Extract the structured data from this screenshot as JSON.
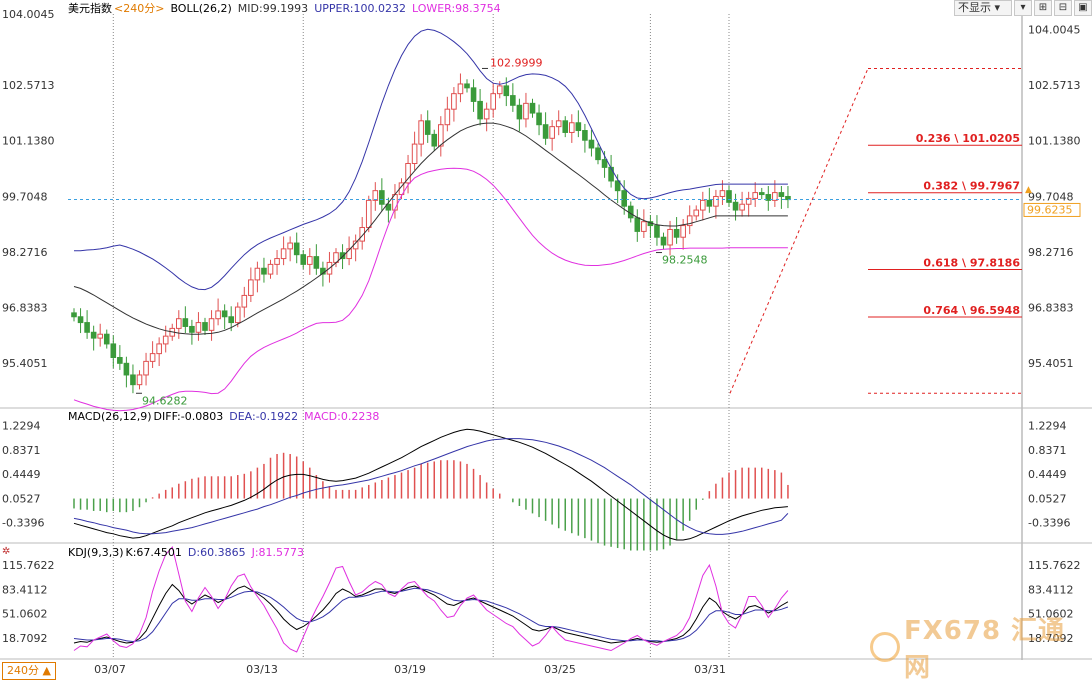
{
  "main": {
    "symbol": "美元指数",
    "period": "<240分>",
    "indicator": "BOLL(26,2)",
    "mid": "MID:99.1993",
    "upper": "UPPER:100.0232",
    "lower": "LOWER:98.3754"
  },
  "toolbar": {
    "select_label": "不显示",
    "btn1": "▾",
    "btn2": "⊞",
    "btn3": "⊟",
    "btn4": "▣"
  },
  "macd": {
    "title": "MACD(26,12,9)",
    "diff": "DIFF:-0.0803",
    "dea": "DEA:-0.1922",
    "macd": "MACD:0.2238"
  },
  "kdj": {
    "title": "KDJ(9,3,3)",
    "k": "K:67.4501",
    "d": "D:60.3865",
    "j": "J:81.5773"
  },
  "period_badge": "240分 ▲",
  "watermark": "FX678 汇通网",
  "colors": {
    "up": "#e05050",
    "down": "#3a9a3a",
    "mid": "#333333",
    "upper": "#3535a8",
    "lower": "#e030e0",
    "price": "#3aa0e0",
    "fib": "#e02020",
    "macd_pos": "#e05050",
    "macd_neg": "#4aa04a",
    "diff": "#000000",
    "dea": "#3535a8",
    "k": "#000000",
    "d": "#3535a8",
    "j": "#e030e0",
    "current_price": "#f0a020"
  },
  "chart_data": [
    {
      "type": "candlestick",
      "title": "美元指数",
      "y_ticks": [
        "104.0045",
        "102.5713",
        "101.1380",
        "99.7048",
        "98.2716",
        "96.8383",
        "95.4051"
      ],
      "ylim": [
        94.3,
        104.3
      ],
      "x_ticks": [
        "03/07",
        "03/13",
        "03/19",
        "03/25",
        "03/31"
      ],
      "annotations": {
        "high": "102.9999",
        "high_value": 102.9999,
        "low1": "94.6282",
        "low1_value": 94.6282,
        "low2": "98.2548",
        "low2_value": 98.2548
      },
      "current_price": "99.6235",
      "current_value": 99.6235,
      "fibonacci": [
        {
          "label": "0.236 \\ 101.0205",
          "value": 101.0205
        },
        {
          "label": "0.382 \\ 99.7967",
          "value": 99.7967
        },
        {
          "label": "0.618 \\ 97.8186",
          "value": 97.8186
        },
        {
          "label": "0.764 \\ 96.5948",
          "value": 96.5948
        }
      ],
      "fib_top": 102.9999,
      "fib_bottom": 94.6282,
      "closes": [
        96.6,
        96.45,
        96.2,
        96.05,
        96.15,
        95.9,
        95.55,
        95.4,
        95.1,
        94.85,
        95.1,
        95.45,
        95.65,
        95.9,
        96.1,
        96.3,
        96.55,
        96.35,
        96.2,
        96.45,
        96.25,
        96.55,
        96.75,
        96.6,
        96.45,
        96.85,
        97.15,
        97.55,
        97.85,
        97.7,
        97.95,
        98.1,
        98.35,
        98.5,
        98.2,
        97.95,
        98.15,
        97.85,
        97.7,
        98.0,
        98.25,
        98.1,
        98.35,
        98.55,
        98.9,
        99.6,
        99.85,
        99.5,
        99.35,
        99.75,
        100.05,
        100.55,
        101.05,
        101.65,
        101.3,
        101.0,
        101.55,
        101.95,
        102.35,
        102.6,
        102.5,
        102.15,
        101.7,
        101.95,
        102.35,
        102.55,
        102.3,
        102.05,
        101.7,
        102.1,
        101.85,
        101.55,
        101.2,
        101.5,
        101.65,
        101.35,
        101.6,
        101.4,
        101.15,
        100.95,
        100.65,
        100.45,
        100.1,
        99.85,
        99.45,
        99.15,
        98.8,
        99.05,
        98.95,
        98.65,
        98.45,
        98.85,
        98.65,
        98.95,
        99.2,
        99.35,
        99.6,
        99.45,
        99.7,
        99.85,
        99.55,
        99.35,
        99.5,
        99.65,
        99.8,
        99.75,
        99.6,
        99.8,
        99.7,
        99.62
      ],
      "upper": [
        98.3,
        98.3,
        98.32,
        98.33,
        98.35,
        98.38,
        98.42,
        98.45,
        98.4,
        98.34,
        98.27,
        98.18,
        98.09,
        97.98,
        97.86,
        97.73,
        97.59,
        97.47,
        97.37,
        97.31,
        97.3,
        97.36,
        97.49,
        97.66,
        97.85,
        98.03,
        98.2,
        98.34,
        98.46,
        98.55,
        98.63,
        98.7,
        98.77,
        98.84,
        98.91,
        98.98,
        99.04,
        99.1,
        99.17,
        99.26,
        99.38,
        99.56,
        99.82,
        100.17,
        100.6,
        101.09,
        101.6,
        102.1,
        102.56,
        102.97,
        103.33,
        103.62,
        103.83,
        103.96,
        104.01,
        103.98,
        103.91,
        103.81,
        103.69,
        103.55,
        103.38,
        103.17,
        102.94,
        102.74,
        102.62,
        102.59,
        102.63,
        102.71,
        102.79,
        102.84,
        102.86,
        102.85,
        102.82,
        102.76,
        102.67,
        102.54,
        102.35,
        102.1,
        101.79,
        101.45,
        101.1,
        100.75,
        100.43,
        100.14,
        99.91,
        99.75,
        99.66,
        99.64,
        99.66,
        99.7,
        99.75,
        99.8,
        99.84,
        99.87,
        99.89,
        99.92,
        99.95,
        99.98,
        100.01,
        100.02,
        100.02,
        100.02,
        100.02,
        100.02,
        100.02,
        100.02,
        100.02,
        100.02,
        100.02,
        100.02
      ],
      "mid": [
        97.38,
        97.33,
        97.25,
        97.16,
        97.06,
        96.96,
        96.86,
        96.76,
        96.66,
        96.57,
        96.49,
        96.41,
        96.35,
        96.29,
        96.24,
        96.21,
        96.18,
        96.16,
        96.15,
        96.15,
        96.16,
        96.17,
        96.2,
        96.25,
        96.32,
        96.41,
        96.5,
        96.6,
        96.7,
        96.79,
        96.88,
        96.97,
        97.06,
        97.16,
        97.26,
        97.37,
        97.48,
        97.6,
        97.72,
        97.85,
        97.99,
        98.15,
        98.32,
        98.5,
        98.69,
        98.89,
        99.1,
        99.32,
        99.54,
        99.75,
        99.96,
        100.16,
        100.36,
        100.55,
        100.72,
        100.88,
        101.03,
        101.16,
        101.28,
        101.39,
        101.47,
        101.53,
        101.57,
        101.59,
        101.59,
        101.56,
        101.51,
        101.45,
        101.36,
        101.26,
        101.14,
        101.02,
        100.89,
        100.77,
        100.64,
        100.52,
        100.39,
        100.27,
        100.14,
        100.01,
        99.88,
        99.74,
        99.61,
        99.49,
        99.37,
        99.26,
        99.16,
        99.08,
        99.02,
        98.97,
        98.95,
        98.94,
        98.94,
        98.97,
        99.0,
        99.05,
        99.1,
        99.15,
        99.2,
        99.2,
        99.2,
        99.2,
        99.2,
        99.2,
        99.2,
        99.2,
        99.2,
        99.2,
        99.2,
        99.2
      ],
      "lower": [
        94.46,
        94.4,
        94.35,
        94.29,
        94.25,
        94.21,
        94.19,
        94.18,
        94.19,
        94.21,
        94.25,
        94.3,
        94.37,
        94.45,
        94.53,
        94.6,
        94.66,
        94.68,
        94.68,
        94.67,
        94.65,
        94.62,
        94.63,
        94.74,
        94.94,
        95.18,
        95.4,
        95.58,
        95.71,
        95.81,
        95.89,
        95.96,
        96.03,
        96.1,
        96.18,
        96.28,
        96.36,
        96.43,
        96.45,
        96.45,
        96.46,
        96.51,
        96.65,
        96.87,
        97.15,
        97.53,
        98.0,
        98.5,
        98.97,
        99.38,
        99.72,
        100.0,
        100.18,
        100.27,
        100.33,
        100.37,
        100.4,
        100.42,
        100.43,
        100.42,
        100.4,
        100.35,
        100.26,
        100.14,
        99.99,
        99.8,
        99.6,
        99.37,
        99.14,
        98.91,
        98.7,
        98.52,
        98.37,
        98.24,
        98.14,
        98.06,
        98.0,
        97.96,
        97.93,
        97.92,
        97.92,
        97.94,
        97.96,
        98.0,
        98.05,
        98.11,
        98.17,
        98.23,
        98.28,
        98.32,
        98.34,
        98.35,
        98.36,
        98.36,
        98.37,
        98.37,
        98.37,
        98.37,
        98.37,
        98.37,
        98.38,
        98.38,
        98.38,
        98.38,
        98.38,
        98.38,
        98.38,
        98.38,
        98.38,
        98.38
      ]
    },
    {
      "type": "bar+line",
      "title": "MACD(26,12,9)",
      "y_ticks": [
        "1.2294",
        "0.8371",
        "0.4449",
        "0.0527",
        "-0.3396"
      ],
      "ylim": [
        -0.62,
        1.32
      ],
      "zero": 0.05,
      "diff": [
        -0.35,
        -0.38,
        -0.41,
        -0.44,
        -0.47,
        -0.5,
        -0.52,
        -0.55,
        -0.57,
        -0.59,
        -0.58,
        -0.55,
        -0.51,
        -0.47,
        -0.43,
        -0.39,
        -0.34,
        -0.3,
        -0.26,
        -0.22,
        -0.18,
        -0.15,
        -0.12,
        -0.09,
        -0.06,
        -0.02,
        0.02,
        0.07,
        0.13,
        0.2,
        0.28,
        0.35,
        0.4,
        0.43,
        0.44,
        0.44,
        0.42,
        0.39,
        0.36,
        0.34,
        0.33,
        0.34,
        0.36,
        0.38,
        0.42,
        0.46,
        0.51,
        0.56,
        0.61,
        0.66,
        0.71,
        0.77,
        0.83,
        0.89,
        0.94,
        0.99,
        1.04,
        1.08,
        1.12,
        1.15,
        1.17,
        1.16,
        1.14,
        1.11,
        1.08,
        1.05,
        1.02,
        0.99,
        0.96,
        0.92,
        0.88,
        0.83,
        0.78,
        0.72,
        0.66,
        0.6,
        0.54,
        0.47,
        0.4,
        0.33,
        0.25,
        0.17,
        0.09,
        0.01,
        -0.07,
        -0.15,
        -0.23,
        -0.31,
        -0.39,
        -0.47,
        -0.54,
        -0.59,
        -0.62,
        -0.62,
        -0.6,
        -0.56,
        -0.51,
        -0.46,
        -0.41,
        -0.36,
        -0.31,
        -0.27,
        -0.23,
        -0.2,
        -0.17,
        -0.14,
        -0.12,
        -0.1,
        -0.09,
        -0.08
      ],
      "dea": [
        -0.27,
        -0.29,
        -0.32,
        -0.34,
        -0.37,
        -0.39,
        -0.42,
        -0.44,
        -0.46,
        -0.49,
        -0.51,
        -0.52,
        -0.52,
        -0.51,
        -0.5,
        -0.48,
        -0.46,
        -0.44,
        -0.42,
        -0.39,
        -0.36,
        -0.33,
        -0.3,
        -0.27,
        -0.24,
        -0.21,
        -0.18,
        -0.15,
        -0.12,
        -0.08,
        -0.05,
        -0.01,
        0.03,
        0.07,
        0.1,
        0.14,
        0.17,
        0.2,
        0.22,
        0.24,
        0.26,
        0.27,
        0.29,
        0.31,
        0.33,
        0.35,
        0.38,
        0.41,
        0.44,
        0.47,
        0.5,
        0.54,
        0.58,
        0.61,
        0.65,
        0.69,
        0.73,
        0.77,
        0.81,
        0.85,
        0.89,
        0.92,
        0.95,
        0.98,
        1.0,
        1.01,
        1.02,
        1.02,
        1.02,
        1.01,
        1.0,
        0.98,
        0.96,
        0.93,
        0.9,
        0.86,
        0.82,
        0.77,
        0.72,
        0.67,
        0.61,
        0.55,
        0.48,
        0.41,
        0.34,
        0.27,
        0.19,
        0.11,
        0.03,
        -0.05,
        -0.13,
        -0.21,
        -0.29,
        -0.36,
        -0.42,
        -0.47,
        -0.5,
        -0.52,
        -0.53,
        -0.53,
        -0.52,
        -0.5,
        -0.48,
        -0.45,
        -0.42,
        -0.39,
        -0.36,
        -0.33,
        -0.3,
        -0.19
      ]
    },
    {
      "type": "line",
      "title": "KDJ(9,3,3)",
      "y_ticks": [
        "115.7622",
        "83.4112",
        "51.0602",
        "18.7092"
      ],
      "ylim": [
        0,
        128
      ],
      "k": [
        12,
        14,
        13,
        16,
        18,
        20,
        17,
        14,
        12,
        13,
        18,
        28,
        45,
        62,
        78,
        90,
        82,
        70,
        64,
        70,
        76,
        72,
        66,
        70,
        78,
        85,
        88,
        83,
        78,
        72,
        64,
        55,
        44,
        36,
        30,
        34,
        40,
        48,
        56,
        66,
        78,
        84,
        80,
        74,
        76,
        80,
        84,
        84,
        80,
        78,
        82,
        86,
        88,
        84,
        80,
        76,
        70,
        64,
        62,
        66,
        70,
        72,
        68,
        64,
        60,
        56,
        52,
        48,
        42,
        36,
        30,
        28,
        30,
        34,
        30,
        26,
        24,
        22,
        20,
        18,
        16,
        14,
        12,
        13,
        14,
        16,
        18,
        16,
        14,
        13,
        14,
        16,
        18,
        22,
        30,
        44,
        60,
        72,
        66,
        54,
        48,
        44,
        50,
        60,
        62,
        58,
        52,
        56,
        62,
        67
      ],
      "d": [
        18,
        17,
        16,
        16,
        17,
        18,
        18,
        17,
        15,
        14,
        15,
        19,
        27,
        39,
        52,
        65,
        71,
        71,
        69,
        69,
        71,
        71,
        70,
        70,
        73,
        77,
        80,
        81,
        80,
        77,
        73,
        67,
        60,
        52,
        45,
        41,
        40,
        43,
        47,
        53,
        61,
        69,
        73,
        73,
        74,
        76,
        79,
        81,
        81,
        80,
        81,
        83,
        85,
        84,
        83,
        80,
        77,
        73,
        69,
        68,
        69,
        70,
        69,
        68,
        65,
        62,
        59,
        55,
        51,
        46,
        41,
        36,
        34,
        34,
        33,
        31,
        29,
        27,
        25,
        23,
        21,
        19,
        17,
        16,
        15,
        15,
        16,
        16,
        15,
        15,
        14,
        15,
        16,
        18,
        22,
        29,
        39,
        50,
        55,
        55,
        53,
        50,
        50,
        53,
        56,
        56,
        55,
        55,
        57,
        60
      ],
      "j": [
        2,
        8,
        7,
        16,
        20,
        24,
        15,
        8,
        6,
        11,
        24,
        46,
        81,
        108,
        130,
        140,
        104,
        68,
        54,
        72,
        86,
        74,
        58,
        70,
        88,
        101,
        104,
        87,
        74,
        62,
        46,
        31,
        12,
        4,
        0,
        20,
        40,
        58,
        74,
        92,
        112,
        114,
        94,
        76,
        80,
        88,
        94,
        90,
        78,
        74,
        84,
        92,
        94,
        84,
        74,
        68,
        56,
        46,
        48,
        62,
        72,
        76,
        66,
        56,
        50,
        44,
        38,
        34,
        24,
        16,
        8,
        12,
        22,
        34,
        24,
        16,
        14,
        12,
        10,
        8,
        6,
        4,
        2,
        7,
        12,
        18,
        22,
        16,
        12,
        9,
        14,
        18,
        22,
        30,
        46,
        74,
        102,
        116,
        88,
        52,
        38,
        32,
        50,
        74,
        74,
        62,
        46,
        58,
        72,
        82
      ]
    }
  ]
}
